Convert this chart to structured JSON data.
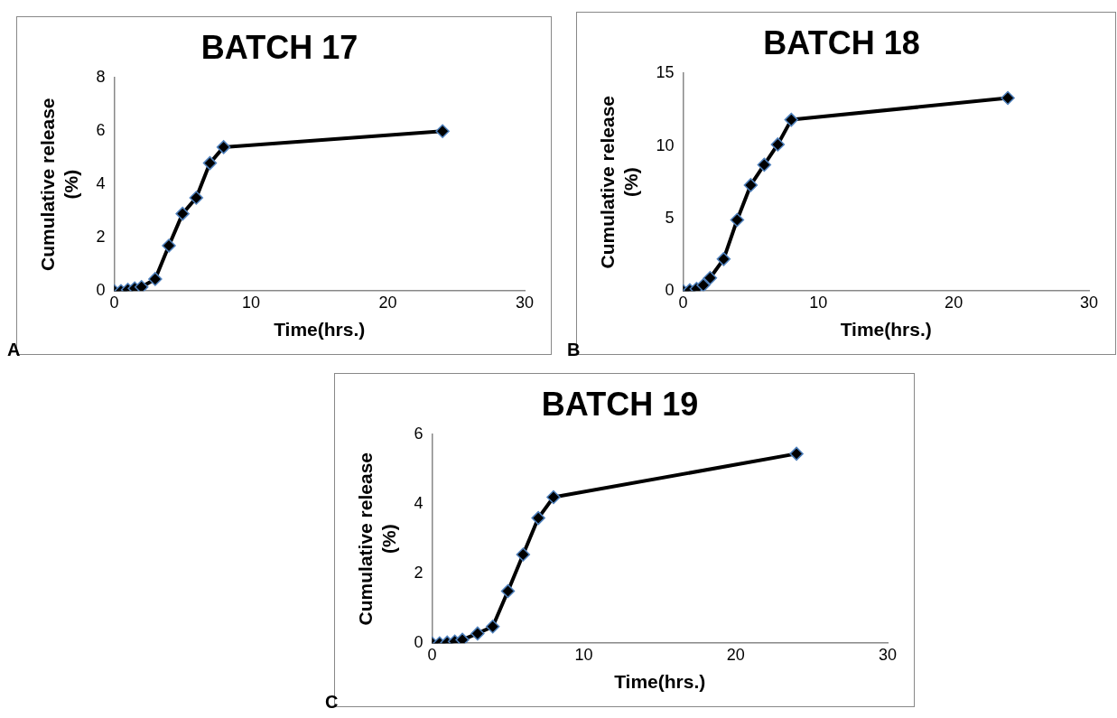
{
  "chart_data": [
    {
      "type": "line",
      "title": "BATCH 17",
      "xlabel": "Time(hrs.)",
      "ylabel": "Cumulative release (%)",
      "annotations": [
        "A"
      ],
      "x": [
        0,
        0.5,
        1,
        1.5,
        2,
        3,
        4,
        5,
        6,
        7,
        8,
        24
      ],
      "series": [
        {
          "color": "#000000",
          "values": [
            0,
            0,
            0.05,
            0.1,
            0.15,
            0.45,
            1.7,
            2.9,
            3.5,
            4.8,
            5.4,
            6
          ]
        }
      ],
      "xlim": [
        0,
        30
      ],
      "xticks": [
        0,
        10,
        20,
        30
      ],
      "ylim": [
        0,
        8
      ],
      "yticks": [
        0,
        2,
        4,
        6,
        8
      ],
      "marker": "diamond",
      "grid": false,
      "legend": false
    },
    {
      "type": "line",
      "title": "BATCH 18",
      "xlabel": "Time(hrs.)",
      "ylabel": "Cumulative release (%)",
      "annotations": [
        "B"
      ],
      "x": [
        0,
        0.5,
        1,
        1.5,
        2,
        3,
        4,
        5,
        6,
        7,
        8,
        24
      ],
      "series": [
        {
          "color": "#000000",
          "values": [
            0,
            0.05,
            0.15,
            0.4,
            0.9,
            2.2,
            4.9,
            7.3,
            8.7,
            10.1,
            11.8,
            13.3
          ]
        }
      ],
      "xlim": [
        0,
        30
      ],
      "xticks": [
        0,
        10,
        20,
        30
      ],
      "ylim": [
        0,
        15
      ],
      "yticks": [
        0,
        5,
        10,
        15
      ],
      "marker": "diamond",
      "grid": false,
      "legend": false
    },
    {
      "type": "line",
      "title": "BATCH 19",
      "xlabel": "Time(hrs.)",
      "ylabel": "Cumulative release (%)",
      "annotations": [
        "C"
      ],
      "x": [
        0,
        0.5,
        1,
        1.5,
        2,
        3,
        4,
        5,
        6,
        7,
        8,
        24
      ],
      "series": [
        {
          "color": "#000000",
          "values": [
            0,
            0,
            0.02,
            0.05,
            0.1,
            0.28,
            0.48,
            1.5,
            2.55,
            3.6,
            4.2,
            5.45
          ]
        }
      ],
      "xlim": [
        0,
        30
      ],
      "xticks": [
        0,
        10,
        20,
        30
      ],
      "ylim": [
        0,
        6
      ],
      "yticks": [
        0,
        2,
        4,
        6
      ],
      "marker": "diamond",
      "grid": false,
      "legend": false
    }
  ]
}
